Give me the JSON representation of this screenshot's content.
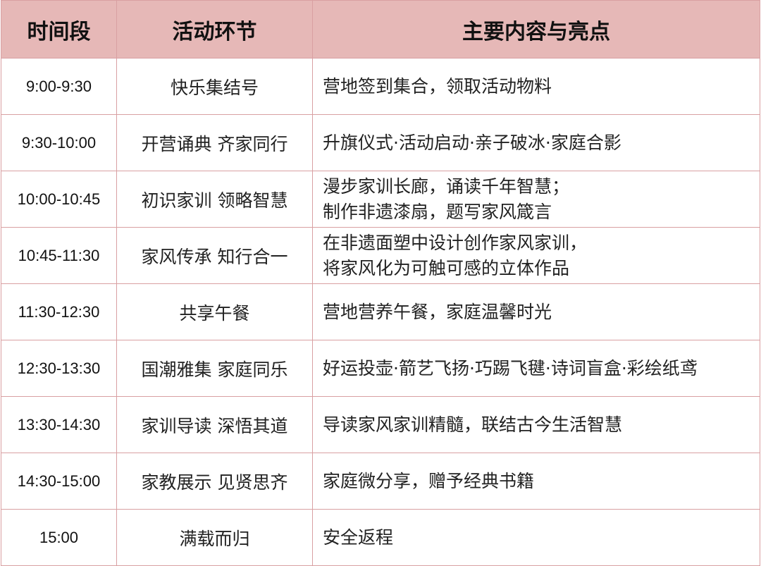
{
  "headers": [
    "时间段",
    "活动环节",
    "主要内容与亮点"
  ],
  "rows": [
    {
      "time": "9:00-9:30",
      "activity": "快乐集结号",
      "content": [
        "营地签到集合，领取活动物料"
      ]
    },
    {
      "time": "9:30-10:00",
      "activity": "开营诵典  齐家同行",
      "content": [
        "升旗仪式·活动启动·亲子破冰·家庭合影"
      ]
    },
    {
      "time": "10:00-10:45",
      "activity": "初识家训  领略智慧",
      "content": [
        "漫步家训长廊，诵读千年智慧；",
        "制作非遗漆扇，题写家风箴言"
      ]
    },
    {
      "time": "10:45-11:30",
      "activity": "家风传承  知行合一",
      "content": [
        "在非遗面塑中设计创作家风家训，",
        "将家风化为可触可感的立体作品"
      ]
    },
    {
      "time": "11:30-12:30",
      "activity": "共享午餐",
      "content": [
        "营地营养午餐，家庭温馨时光"
      ]
    },
    {
      "time": "12:30-13:30",
      "activity": "国潮雅集  家庭同乐",
      "content": [
        "好运投壶·箭艺飞扬·巧踢飞毽·诗词盲盒·彩绘纸鸢"
      ]
    },
    {
      "time": "13:30-14:30",
      "activity": "家训导读  深悟其道",
      "content": [
        "导读家风家训精髓，联结古今生活智慧"
      ]
    },
    {
      "time": "14:30-15:00",
      "activity": "家教展示  见贤思齐",
      "content": [
        "家庭微分享，赠予经典书籍"
      ]
    },
    {
      "time": "15:00",
      "activity": "满载而归",
      "content": [
        "安全返程"
      ]
    }
  ],
  "colors": {
    "header_bg": "#e6b8b7",
    "border": "#d9a0a2"
  }
}
